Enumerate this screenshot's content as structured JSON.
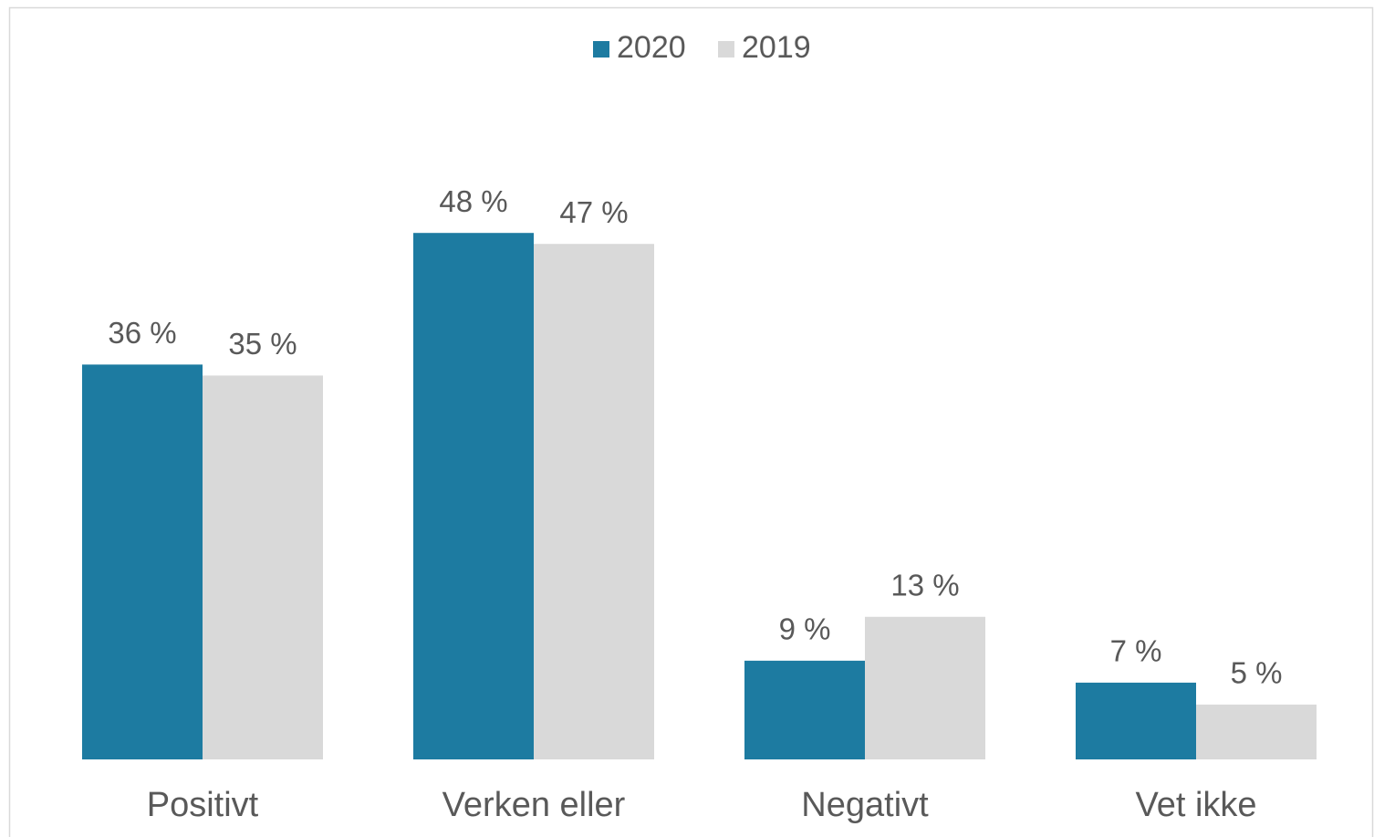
{
  "chart_data": {
    "type": "bar",
    "categories": [
      "Positivt",
      "Verken eller",
      "Negativt",
      "Vet ikke"
    ],
    "series": [
      {
        "name": "2020",
        "color": "#1d7ba1",
        "values": [
          36,
          48,
          9,
          7
        ],
        "value_labels": [
          "36 %",
          "48 %",
          "9 %",
          "7 %"
        ]
      },
      {
        "name": "2019",
        "color": "#d9d9d9",
        "values": [
          35,
          47,
          13,
          5
        ],
        "value_labels": [
          "35 %",
          "47 %",
          "13 %",
          "5 %"
        ]
      }
    ],
    "ylim": [
      0,
      60
    ],
    "legend": "top"
  }
}
